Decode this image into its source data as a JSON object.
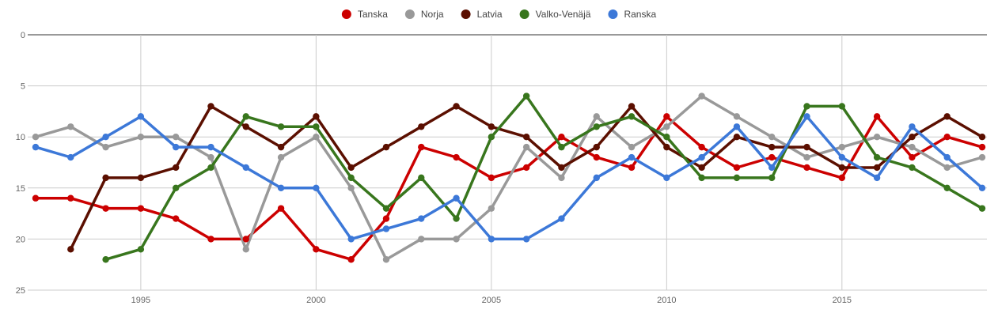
{
  "chart_data": {
    "type": "line",
    "title": "",
    "xlabel": "",
    "ylabel": "",
    "y_reversed": true,
    "ylim": [
      0,
      25
    ],
    "xlim": [
      1992,
      2019
    ],
    "y_ticks": [
      0,
      5,
      10,
      15,
      20,
      25
    ],
    "x_ticks": [
      1995,
      2000,
      2005,
      2010,
      2015
    ],
    "grid": true,
    "legend_position": "top-center",
    "series": [
      {
        "name": "Tanska",
        "color": "#cc0000",
        "points": [
          [
            1992,
            16
          ],
          [
            1993,
            16
          ],
          [
            1994,
            17
          ],
          [
            1995,
            17
          ],
          [
            1996,
            18
          ],
          [
            1997,
            20
          ],
          [
            1998,
            20
          ],
          [
            1999,
            17
          ],
          [
            2000,
            21
          ],
          [
            2001,
            22
          ],
          [
            2002,
            18
          ],
          [
            2003,
            11
          ],
          [
            2004,
            12
          ],
          [
            2005,
            14
          ],
          [
            2006,
            13
          ],
          [
            2007,
            10
          ],
          [
            2008,
            12
          ],
          [
            2009,
            13
          ],
          [
            2010,
            8
          ],
          [
            2011,
            11
          ],
          [
            2012,
            13
          ],
          [
            2013,
            12
          ],
          [
            2014,
            13
          ],
          [
            2015,
            14
          ],
          [
            2016,
            8
          ],
          [
            2017,
            12
          ],
          [
            2018,
            10
          ],
          [
            2019,
            11
          ]
        ]
      },
      {
        "name": "Norja",
        "color": "#999999",
        "points": [
          [
            1992,
            10
          ],
          [
            1993,
            9
          ],
          [
            1994,
            11
          ],
          [
            1995,
            10
          ],
          [
            1996,
            10
          ],
          [
            1997,
            12
          ],
          [
            1998,
            21
          ],
          [
            1999,
            12
          ],
          [
            2000,
            10
          ],
          [
            2001,
            15
          ],
          [
            2002,
            22
          ],
          [
            2003,
            20
          ],
          [
            2004,
            20
          ],
          [
            2005,
            17
          ],
          [
            2006,
            11
          ],
          [
            2007,
            14
          ],
          [
            2008,
            8
          ],
          [
            2009,
            11
          ],
          [
            2010,
            9
          ],
          [
            2011,
            6
          ],
          [
            2012,
            8
          ],
          [
            2013,
            10
          ],
          [
            2014,
            12
          ],
          [
            2015,
            11
          ],
          [
            2016,
            10
          ],
          [
            2017,
            11
          ],
          [
            2018,
            13
          ],
          [
            2019,
            12
          ]
        ]
      },
      {
        "name": "Latvia",
        "color": "#5b0f00",
        "points": [
          [
            1993,
            21
          ],
          [
            1994,
            14
          ],
          [
            1995,
            14
          ],
          [
            1996,
            13
          ],
          [
            1997,
            7
          ],
          [
            1998,
            9
          ],
          [
            1999,
            11
          ],
          [
            2000,
            8
          ],
          [
            2001,
            13
          ],
          [
            2002,
            11
          ],
          [
            2003,
            9
          ],
          [
            2004,
            7
          ],
          [
            2005,
            9
          ],
          [
            2006,
            10
          ],
          [
            2007,
            13
          ],
          [
            2008,
            11
          ],
          [
            2009,
            7
          ],
          [
            2010,
            11
          ],
          [
            2011,
            13
          ],
          [
            2012,
            10
          ],
          [
            2013,
            11
          ],
          [
            2014,
            11
          ],
          [
            2015,
            13
          ],
          [
            2016,
            13
          ],
          [
            2017,
            10
          ],
          [
            2018,
            8
          ],
          [
            2019,
            10
          ]
        ]
      },
      {
        "name": "Valko-Venäjä",
        "color": "#38761d",
        "points": [
          [
            1994,
            22
          ],
          [
            1995,
            21
          ],
          [
            1996,
            15
          ],
          [
            1997,
            13
          ],
          [
            1998,
            8
          ],
          [
            1999,
            9
          ],
          [
            2000,
            9
          ],
          [
            2001,
            14
          ],
          [
            2002,
            17
          ],
          [
            2003,
            14
          ],
          [
            2004,
            18
          ],
          [
            2005,
            10
          ],
          [
            2006,
            6
          ],
          [
            2007,
            11
          ],
          [
            2008,
            9
          ],
          [
            2009,
            8
          ],
          [
            2010,
            10
          ],
          [
            2011,
            14
          ],
          [
            2012,
            14
          ],
          [
            2013,
            14
          ],
          [
            2014,
            7
          ],
          [
            2015,
            7
          ],
          [
            2016,
            12
          ],
          [
            2017,
            13
          ],
          [
            2018,
            15
          ],
          [
            2019,
            17
          ]
        ]
      },
      {
        "name": "Ranska",
        "color": "#3c78d8",
        "points": [
          [
            1992,
            11
          ],
          [
            1993,
            12
          ],
          [
            1994,
            10
          ],
          [
            1995,
            8
          ],
          [
            1996,
            11
          ],
          [
            1997,
            11
          ],
          [
            1998,
            13
          ],
          [
            1999,
            15
          ],
          [
            2000,
            15
          ],
          [
            2001,
            20
          ],
          [
            2002,
            19
          ],
          [
            2003,
            18
          ],
          [
            2004,
            16
          ],
          [
            2005,
            20
          ],
          [
            2006,
            20
          ],
          [
            2007,
            18
          ],
          [
            2008,
            14
          ],
          [
            2009,
            12
          ],
          [
            2010,
            14
          ],
          [
            2011,
            12
          ],
          [
            2012,
            9
          ],
          [
            2013,
            13
          ],
          [
            2014,
            8
          ],
          [
            2015,
            12
          ],
          [
            2016,
            14
          ],
          [
            2017,
            9
          ],
          [
            2018,
            12
          ],
          [
            2019,
            15
          ]
        ]
      }
    ]
  }
}
